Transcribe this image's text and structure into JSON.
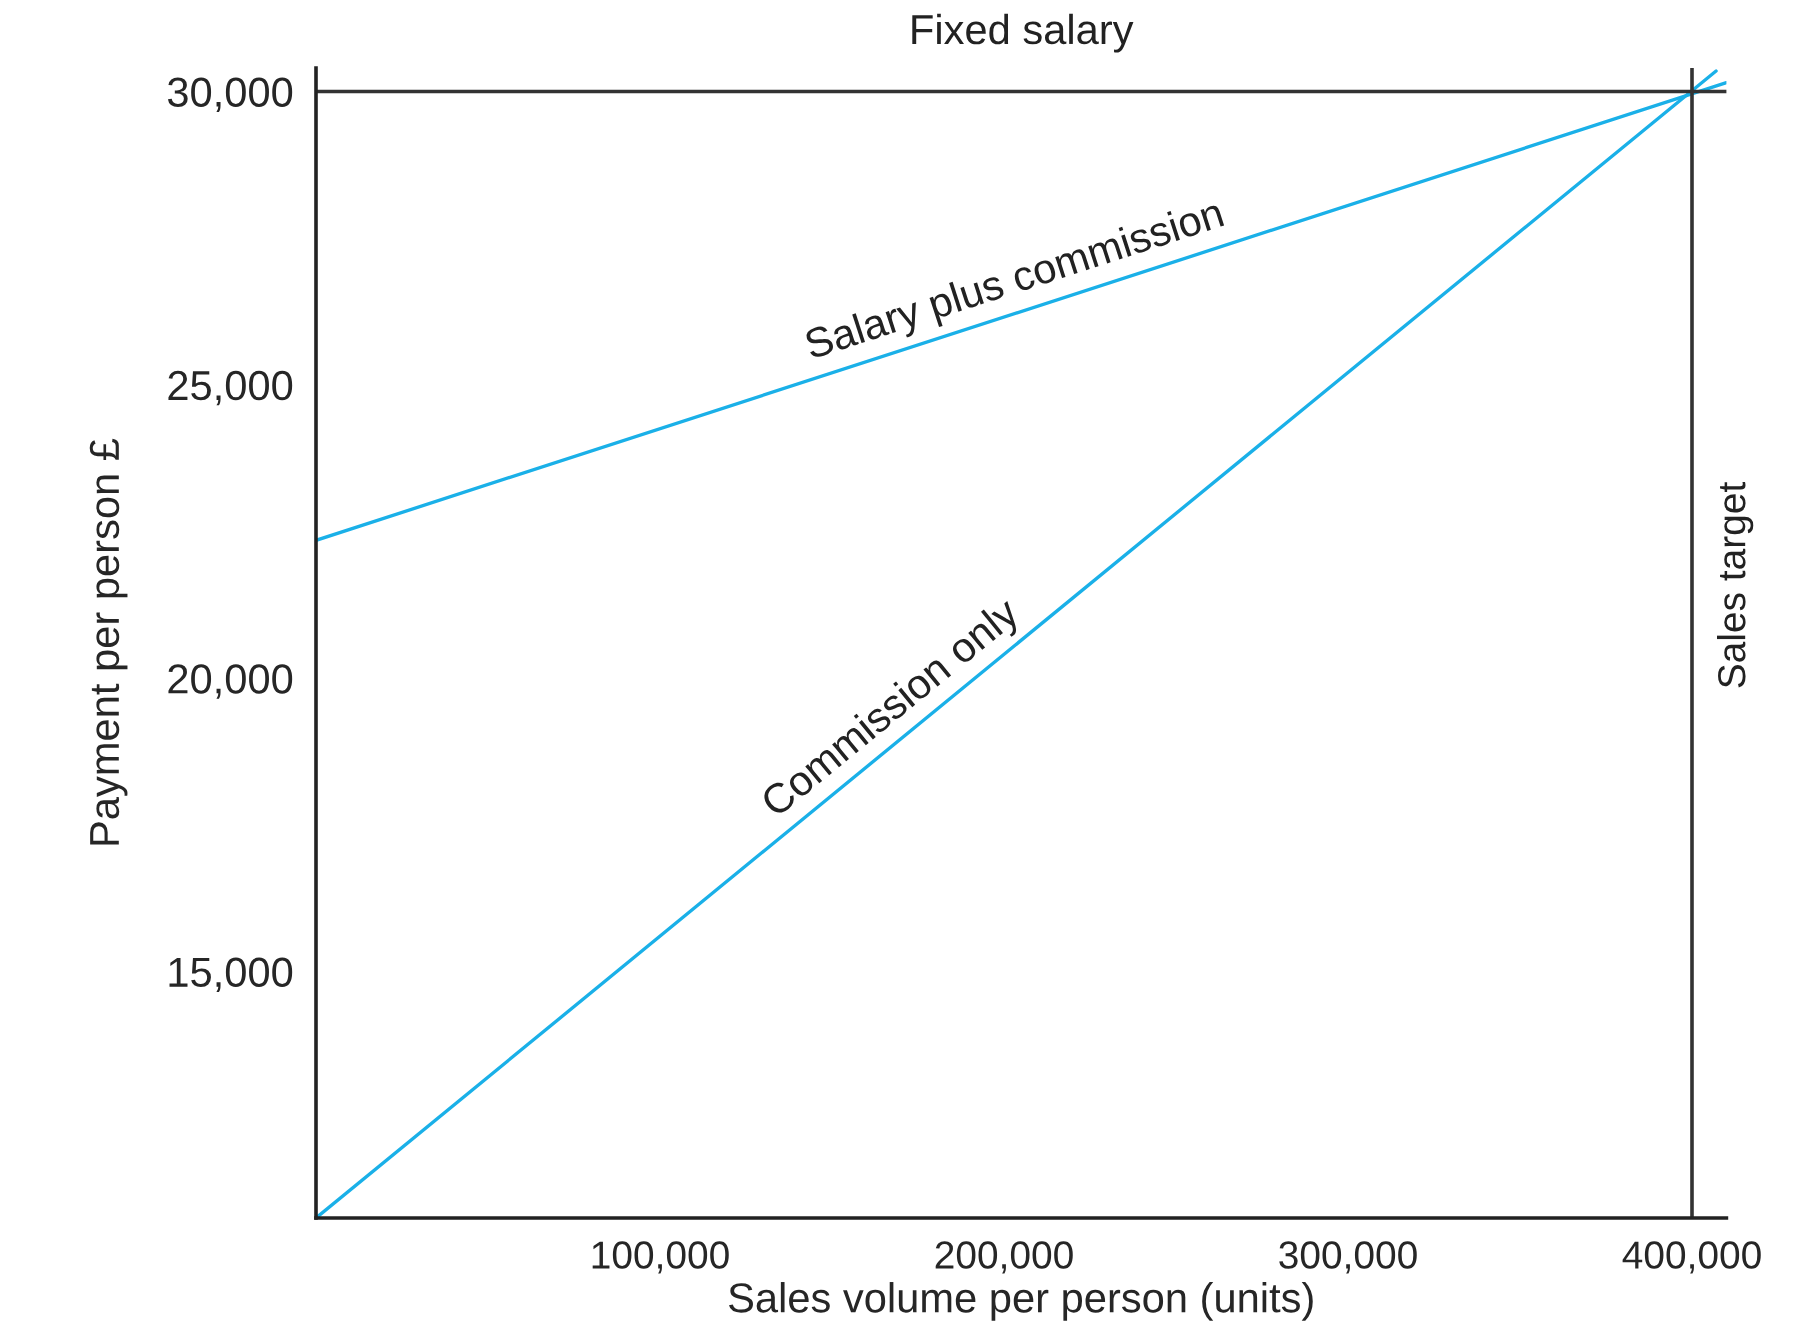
{
  "chart_data": {
    "type": "line",
    "xlabel": "Sales volume per person (units)",
    "ylabel": "Payment per person £",
    "xlim": [
      0,
      410000
    ],
    "ylim": [
      10800,
      30400
    ],
    "xticks": [
      {
        "value": 100000,
        "label": "100,000"
      },
      {
        "value": 200000,
        "label": "200,000"
      },
      {
        "value": 300000,
        "label": "300,000"
      },
      {
        "value": 400000,
        "label": "400,000"
      }
    ],
    "yticks": [
      {
        "value": 15000,
        "label": "15,000"
      },
      {
        "value": 20000,
        "label": "20,000"
      },
      {
        "value": 25000,
        "label": "25,000"
      },
      {
        "value": 30000,
        "label": "30,000"
      }
    ],
    "series": [
      {
        "name": "Salary plus commission",
        "color": "#1ab0e8",
        "x": [
          0,
          410000
        ],
        "values": [
          22350,
          30150
        ]
      },
      {
        "name": "Commission only",
        "color": "#1ab0e8",
        "x": [
          0,
          407000
        ],
        "values": [
          10800,
          30350
        ]
      }
    ],
    "ref_lines": [
      {
        "axis": "y",
        "value": 30000,
        "label": "Fixed salary",
        "color": "#333333"
      },
      {
        "axis": "x",
        "value": 400000,
        "label": "Sales target",
        "color": "#333333"
      }
    ],
    "grid": false,
    "legend": false,
    "marker": "none",
    "line_style": "solid"
  }
}
